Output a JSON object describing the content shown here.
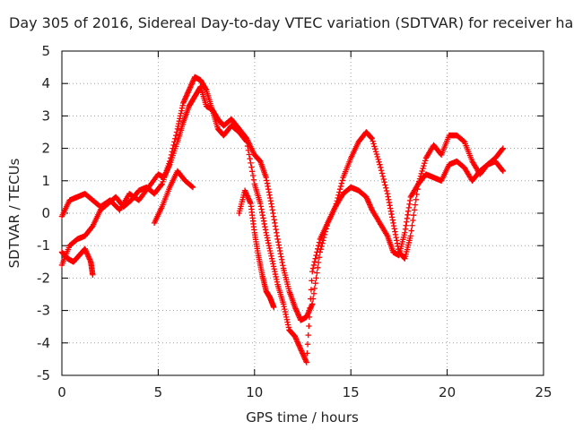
{
  "chart_data": {
    "type": "scatter",
    "title": "Day 305 of 2016, Sidereal Day-to-day VTEC variation (SDTVAR) for receiver ha",
    "xlabel": "GPS time / hours",
    "ylabel": "SDTVAR / TECUs",
    "xlim": [
      0,
      25
    ],
    "ylim": [
      -5,
      5
    ],
    "x_ticks": [
      "0",
      "5",
      "10",
      "15",
      "20",
      "25"
    ],
    "y_ticks": [
      "-5",
      "-4",
      "-3",
      "-2",
      "-1",
      "0",
      "1",
      "2",
      "3",
      "4",
      "5"
    ],
    "grid": true,
    "legend": "none",
    "marker": "+",
    "series_color": "#ff0000",
    "series": [
      {
        "x": [
          0,
          0.4,
          0.8,
          1.2,
          1.6,
          2,
          2.5,
          3,
          3.5,
          4,
          4.5,
          5,
          5.3,
          5.6,
          6,
          6.3,
          6.6,
          6.9,
          7.2,
          7.5,
          7.8,
          8.1,
          8.4,
          8.8,
          9.2,
          9.6,
          10,
          10.3,
          10.6,
          10.9,
          11.2,
          11.5,
          11.8,
          12.1,
          12.4,
          12.7,
          13,
          13.4,
          13.8,
          14.2,
          14.6,
          15,
          15.4,
          15.8,
          16.1,
          16.5,
          16.9,
          17.2,
          17.5,
          17.8,
          18.1,
          18.5,
          18.9,
          19.3,
          19.7,
          20.1,
          20.5,
          20.9,
          21.3,
          21.7,
          22.1,
          22.5,
          22.9
        ],
        "y": [
          -0.1,
          0.4,
          0.5,
          0.6,
          0.4,
          0.2,
          0.4,
          0.1,
          0.6,
          0.4,
          0.8,
          1.2,
          1.1,
          1.5,
          2.2,
          2.8,
          3.3,
          3.6,
          3.9,
          3.3,
          3.2,
          2.9,
          2.7,
          2.9,
          2.6,
          2.3,
          1.8,
          1.6,
          1.1,
          0.2,
          -0.8,
          -1.7,
          -2.4,
          -2.9,
          -3.3,
          -3.2,
          -2.8,
          -1.2,
          -0.3,
          0.2,
          1.1,
          1.7,
          2.2,
          2.5,
          2.3,
          1.5,
          0.6,
          -0.3,
          -1.2,
          -1.4,
          -0.7,
          0.9,
          1.7,
          2.1,
          1.8,
          2.4,
          2.4,
          2.2,
          1.6,
          1.2,
          1.5,
          1.7,
          2.0
        ]
      },
      {
        "x": [
          0,
          0.4,
          0.8,
          1.2,
          1.6,
          2,
          2.4,
          2.8,
          3.2,
          3.6,
          4,
          4.4,
          4.8,
          5.2,
          5.6,
          6,
          6.3,
          6.6,
          6.9,
          7.2,
          7.5,
          7.8,
          8.1,
          8.4,
          8.8,
          9.2,
          9.6,
          10,
          10.3,
          10.6,
          10.9,
          11.2,
          11.5,
          11.8,
          12.1,
          12.4,
          12.7,
          13,
          13.4,
          13.8,
          14.2,
          14.6,
          15,
          15.4,
          15.8,
          16.1,
          16.5,
          16.9,
          17.2,
          17.5,
          17.8,
          18.1,
          18.5,
          18.9,
          19.3,
          19.7,
          20.1,
          20.5,
          20.9,
          21.3,
          21.7,
          22.1,
          22.5,
          22.9
        ],
        "y": [
          -1.6,
          -1.0,
          -0.8,
          -0.7,
          -0.4,
          0.1,
          0.3,
          0.5,
          0.2,
          0.4,
          0.7,
          0.8,
          0.6,
          0.9,
          1.6,
          2.6,
          3.4,
          3.8,
          4.2,
          4.1,
          3.8,
          3.2,
          2.6,
          2.4,
          2.7,
          2.5,
          2.2,
          0.9,
          0.3,
          -0.6,
          -1.4,
          -2.2,
          -2.8,
          -3.6,
          -3.8,
          -4.2,
          -4.6,
          -1.8,
          -0.8,
          -0.3,
          0.2,
          0.6,
          0.8,
          0.7,
          0.5,
          0.1,
          -0.3,
          -0.7,
          -1.2,
          -1.3,
          -0.6,
          0.5,
          0.9,
          1.2,
          1.1,
          1.0,
          1.5,
          1.6,
          1.4,
          1.0,
          1.3,
          1.5,
          1.6,
          1.3
        ]
      },
      {
        "x": [
          0,
          0.3,
          0.6,
          0.9,
          1.2,
          1.5,
          1.6
        ],
        "y": [
          -1.2,
          -1.4,
          -1.5,
          -1.3,
          -1.1,
          -1.5,
          -1.9
        ]
      },
      {
        "x": [
          4.8,
          5.2,
          5.6,
          6,
          6.4,
          6.8
        ],
        "y": [
          -0.3,
          0.2,
          0.8,
          1.3,
          1.0,
          0.8
        ]
      },
      {
        "x": [
          9.2,
          9.5,
          9.8,
          10,
          10.2,
          10.4,
          10.6,
          10.8,
          11.0
        ],
        "y": [
          0.0,
          0.7,
          0.3,
          -0.6,
          -1.3,
          -1.9,
          -2.4,
          -2.6,
          -2.9
        ]
      }
    ]
  }
}
